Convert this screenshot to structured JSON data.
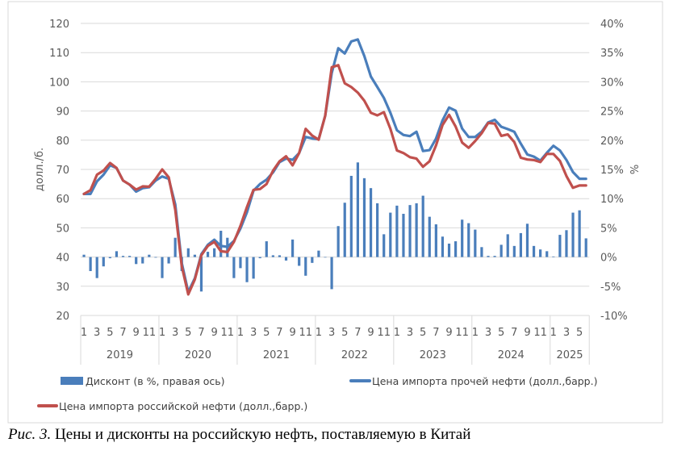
{
  "chart_data": {
    "type": "bar+line",
    "title": "",
    "ylabel_left": "долл./б.",
    "ylabel_right": "%",
    "ylim_left": [
      20,
      120
    ],
    "yticks_left": [
      "20",
      "30",
      "40",
      "50",
      "60",
      "70",
      "80",
      "90",
      "100",
      "110",
      "120"
    ],
    "ylim_right": [
      -10,
      40
    ],
    "yticks_right": [
      "-10%",
      "-5%",
      "0%",
      "5%",
      "10%",
      "15%",
      "20%",
      "25%",
      "30%",
      "35%",
      "40%"
    ],
    "grid": true,
    "years": [
      {
        "label": "2019",
        "months": 12
      },
      {
        "label": "2020",
        "months": 12
      },
      {
        "label": "2021",
        "months": 12
      },
      {
        "label": "2022",
        "months": 12
      },
      {
        "label": "2023",
        "months": 12
      },
      {
        "label": "2024",
        "months": 12
      },
      {
        "label": "2025",
        "months": 6
      }
    ],
    "month_tick_labels": [
      "1",
      "3",
      "5",
      "7",
      "9",
      "11"
    ],
    "legend_position": "bottom",
    "series": [
      {
        "name": "Дисконт (в %, правая ось)",
        "type": "bar",
        "axis": "right",
        "color": "#4a7ebb",
        "values": [
          0.4,
          -2.4,
          -3.6,
          -1.6,
          -0.2,
          1.0,
          0.2,
          0.2,
          -1.2,
          -1.1,
          0.4,
          -0.1,
          -3.6,
          -1.1,
          3.3,
          -2.4,
          1.5,
          0.4,
          -5.9,
          0.9,
          1.5,
          4.5,
          3.3,
          -3.6,
          -1.9,
          -4.3,
          -3.7,
          -0.2,
          2.7,
          0.3,
          0.3,
          -0.6,
          3.0,
          -1.5,
          -3.2,
          -1.0,
          1.1,
          0.0,
          -5.5,
          5.3,
          9.3,
          13.9,
          16.2,
          13.5,
          11.8,
          9.2,
          3.9,
          7.6,
          8.8,
          7.4,
          8.9,
          9.2,
          10.5,
          6.9,
          5.6,
          3.5,
          2.3,
          2.7,
          6.4,
          5.8,
          4.7,
          1.7,
          0.2,
          0.2,
          2.1,
          3.9,
          1.9,
          4.1,
          5.7,
          1.9,
          1.3,
          1.0,
          0.1,
          3.8,
          4.6,
          7.6,
          8.0,
          3.2
        ]
      },
      {
        "name": "Цена импорта прочей нефти (долл.,барр.)",
        "type": "line",
        "axis": "left",
        "color": "#4a7ebb",
        "values": [
          61.6,
          61.6,
          65.9,
          68.2,
          71.4,
          70.5,
          66.2,
          64.8,
          62.4,
          63.6,
          63.9,
          66.2,
          67.6,
          66.8,
          58.0,
          38.0,
          28.0,
          32.7,
          41.0,
          44.2,
          45.9,
          43.8,
          43.5,
          45.5,
          49.8,
          55.3,
          62.7,
          65.0,
          66.5,
          69.0,
          72.5,
          73.7,
          73.3,
          75.6,
          81.1,
          80.6,
          80.4,
          88.4,
          103.0,
          111.5,
          109.7,
          113.8,
          114.5,
          108.8,
          101.8,
          98.2,
          94.5,
          89.4,
          83.4,
          81.8,
          81.4,
          82.9,
          76.3,
          76.6,
          80.6,
          86.8,
          91.2,
          90.1,
          84.0,
          81.1,
          81.1,
          82.9,
          86.1,
          87.0,
          84.6,
          83.8,
          82.9,
          78.8,
          75.1,
          74.4,
          73.0,
          75.7,
          78.1,
          76.5,
          73.2,
          69.1,
          66.8,
          66.8
        ]
      },
      {
        "name": "Цена импорта российской нефти (долл.,барр.)",
        "type": "line",
        "axis": "left",
        "color": "#c0504d",
        "values": [
          61.6,
          62.9,
          68.2,
          69.6,
          72.2,
          70.5,
          66.2,
          64.8,
          63.1,
          64.2,
          64.1,
          66.8,
          70.0,
          67.3,
          56.2,
          36.9,
          27.2,
          32.3,
          40.6,
          43.8,
          45.2,
          42.0,
          41.7,
          45.2,
          50.7,
          57.1,
          63.0,
          63.3,
          65.0,
          69.6,
          72.8,
          74.5,
          71.4,
          75.6,
          83.9,
          81.6,
          80.2,
          88.4,
          105.0,
          105.7,
          99.5,
          98.2,
          96.3,
          93.5,
          89.4,
          88.5,
          89.6,
          83.9,
          76.5,
          75.6,
          74.2,
          73.7,
          70.9,
          72.8,
          78.3,
          85.2,
          88.7,
          84.7,
          79.2,
          77.4,
          79.7,
          82.4,
          85.9,
          85.7,
          81.5,
          82.0,
          79.4,
          74.0,
          73.4,
          73.2,
          72.5,
          75.3,
          75.3,
          72.9,
          67.7,
          63.7,
          64.5,
          64.5
        ]
      }
    ]
  },
  "caption": {
    "prefix": "Рис. 3.",
    "text": " Цены и дисконты на российскую нефть, поставляемую в Китай"
  }
}
